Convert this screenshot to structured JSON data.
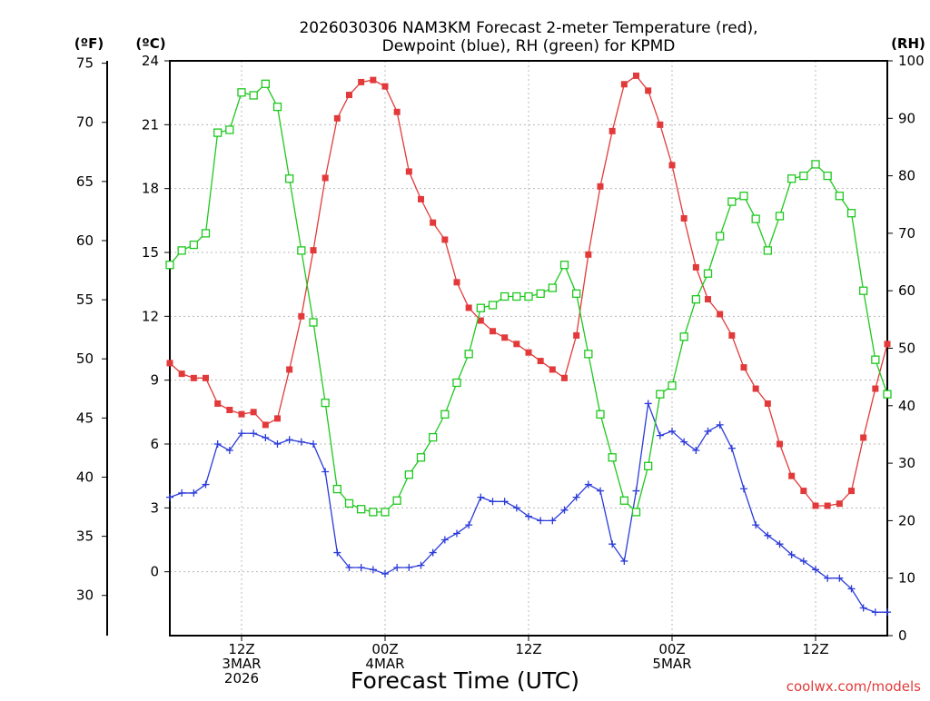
{
  "chart_data": {
    "type": "line",
    "title_lines": [
      "2026030306 NAM3KM Forecast 2-meter Temperature (red),",
      "Dewpoint (blue), RH (green) for KPMD"
    ],
    "xlabel": "Forecast Time (UTC)",
    "credit": "coolwx.com/models",
    "units": {
      "f": "(ºF)",
      "c": "(ºC)",
      "rh": "(RH)"
    },
    "x_range_hours": [
      7,
      67
    ],
    "y_range_c": [
      -3,
      24
    ],
    "y_range_rh": [
      0,
      100
    ],
    "y_range_f": [
      26.6,
      75.2
    ],
    "c_ticks": [
      0,
      3,
      6,
      9,
      12,
      15,
      18,
      21,
      24
    ],
    "f_ticks": [
      30,
      35,
      40,
      45,
      50,
      55,
      60,
      65,
      70,
      75
    ],
    "rh_ticks": [
      0,
      10,
      20,
      30,
      40,
      50,
      60,
      70,
      80,
      90,
      100
    ],
    "x_ticks": [
      {
        "hour": 13,
        "lines": [
          "12Z",
          "3MAR",
          "2026"
        ]
      },
      {
        "hour": 25,
        "lines": [
          "00Z",
          "4MAR"
        ]
      },
      {
        "hour": 37,
        "lines": [
          "12Z"
        ]
      },
      {
        "hour": 49,
        "lines": [
          "00Z",
          "5MAR"
        ]
      },
      {
        "hour": 61,
        "lines": [
          "12Z"
        ]
      }
    ],
    "series": [
      {
        "name": "2-meter Temperature",
        "unit": "C",
        "color": "#e23a3a",
        "marker": "filled-square",
        "values": [
          9.8,
          9.3,
          9.1,
          9.1,
          7.9,
          7.6,
          7.4,
          7.5,
          6.9,
          7.2,
          9.5,
          12,
          15.1,
          18.5,
          21.3,
          22.4,
          23.0,
          23.1,
          22.8,
          21.6,
          18.8,
          17.5,
          16.4,
          15.6,
          13.6,
          12.4,
          11.8,
          11.3,
          11.0,
          10.7,
          10.3,
          9.9,
          9.5,
          9.1,
          11.1,
          14.9,
          18.1,
          20.7,
          22.9,
          23.3,
          22.6,
          21.0,
          19.1,
          16.6,
          14.3,
          12.8,
          12.1,
          11.1,
          9.6,
          8.6,
          7.9,
          6.0,
          4.5,
          3.8,
          3.1,
          3.1,
          3.2,
          3.8,
          6.3,
          8.6,
          10.7
        ]
      },
      {
        "name": "Dewpoint",
        "unit": "C",
        "color": "#2b3bd9",
        "marker": "plus",
        "values": [
          3.5,
          3.7,
          3.7,
          4.1,
          6.0,
          5.7,
          6.5,
          6.5,
          6.3,
          6.0,
          6.2,
          6.1,
          6.0,
          4.7,
          0.9,
          0.2,
          0.2,
          0.1,
          -0.1,
          0.2,
          0.2,
          0.3,
          0.9,
          1.5,
          1.8,
          2.2,
          3.5,
          3.3,
          3.3,
          3.0,
          2.6,
          2.4,
          2.4,
          2.9,
          3.5,
          4.1,
          3.8,
          1.3,
          0.5,
          3.8,
          7.9,
          6.4,
          6.6,
          6.1,
          5.7,
          6.6,
          6.9,
          5.8,
          3.9,
          2.2,
          1.7,
          1.3,
          0.8,
          0.5,
          0.1,
          -0.3,
          -0.3,
          -0.8,
          -1.7,
          -1.9,
          -1.9
        ]
      },
      {
        "name": "RH",
        "unit": "RH",
        "color": "#1ec81e",
        "marker": "open-square",
        "values": [
          64.5,
          67,
          68,
          70,
          87.5,
          88,
          94.5,
          94,
          96,
          92,
          79.5,
          67,
          54.5,
          40.5,
          25.5,
          23,
          22,
          21.5,
          21.5,
          23.5,
          28,
          31,
          34.5,
          38.5,
          44,
          49,
          57,
          57.5,
          59,
          59,
          59,
          59.5,
          60.5,
          64.5,
          59.5,
          49,
          38.5,
          31,
          23.5,
          21.5,
          29.5,
          42,
          43.5,
          52,
          58.5,
          63,
          69.5,
          75.5,
          76.5,
          72.5,
          67,
          73,
          79.5,
          80,
          82,
          80,
          76.5,
          73.5,
          60,
          48,
          42
        ]
      }
    ]
  }
}
